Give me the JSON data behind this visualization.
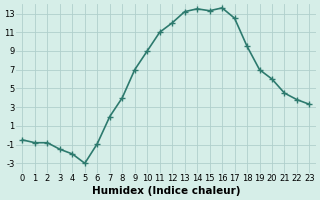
{
  "x": [
    0,
    1,
    2,
    3,
    4,
    5,
    6,
    7,
    8,
    9,
    10,
    11,
    12,
    13,
    14,
    15,
    16,
    17,
    18,
    19,
    20,
    21,
    22,
    23
  ],
  "y": [
    -0.5,
    -0.8,
    -0.8,
    -1.5,
    -2.0,
    -3.0,
    -0.9,
    2.0,
    4.0,
    7.0,
    9.0,
    11.0,
    12.0,
    13.2,
    13.5,
    13.3,
    13.6,
    12.5,
    9.5,
    7.0,
    6.0,
    4.5,
    3.8,
    3.3
  ],
  "line_color": "#2d7a6e",
  "marker": "+",
  "marker_size": 4,
  "bg_color": "#d6eee8",
  "grid_color": "#b0d0cc",
  "xlabel": "Humidex (Indice chaleur)",
  "ylabel": "",
  "xlim": [
    -0.5,
    23.5
  ],
  "ylim": [
    -4,
    14
  ],
  "yticks": [
    -3,
    -1,
    1,
    3,
    5,
    7,
    9,
    11,
    13
  ],
  "xticks": [
    0,
    1,
    2,
    3,
    4,
    5,
    6,
    7,
    8,
    9,
    10,
    11,
    12,
    13,
    14,
    15,
    16,
    17,
    18,
    19,
    20,
    21,
    22,
    23
  ],
  "xtick_labels": [
    "0",
    "1",
    "2",
    "3",
    "4",
    "5",
    "6",
    "7",
    "8",
    "9",
    "10",
    "11",
    "12",
    "13",
    "14",
    "15",
    "16",
    "17",
    "18",
    "19",
    "20",
    "21",
    "22",
    "23"
  ],
  "tick_fontsize": 6,
  "xlabel_fontsize": 7.5,
  "line_width": 1.2
}
